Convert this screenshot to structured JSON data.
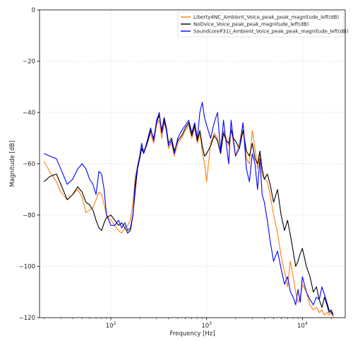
{
  "chart_data": {
    "type": "line",
    "xlabel": "Frequency [Hz]",
    "ylabel": "Magnitude [dB]",
    "x_scale": "log",
    "xlim": [
      18,
      28000
    ],
    "ylim": [
      -120,
      0
    ],
    "x_ticks": [
      {
        "value": 100,
        "base": "10",
        "exp": "2"
      },
      {
        "value": 1000,
        "base": "10",
        "exp": "3"
      },
      {
        "value": 10000,
        "base": "10",
        "exp": "4"
      }
    ],
    "y_ticks": [
      0,
      -20,
      -40,
      -60,
      -80,
      -100,
      -120
    ],
    "y_tick_labels": [
      "0",
      "−20",
      "−40",
      "−60",
      "−80",
      "−100",
      "−120"
    ],
    "grid": true,
    "legend_position": "top-right",
    "series": [
      {
        "name": "Liberty4NC_Ambient_Voice_peak_peak_magnitude_left(dB)",
        "color": "#ff7f0e",
        "x": [
          20,
          23,
          27,
          30,
          35,
          40,
          45,
          50,
          55,
          60,
          65,
          70,
          75,
          80,
          85,
          90,
          100,
          110,
          120,
          130,
          140,
          150,
          160,
          170,
          180,
          190,
          200,
          210,
          220,
          240,
          260,
          280,
          300,
          320,
          340,
          360,
          380,
          400,
          430,
          460,
          500,
          550,
          600,
          650,
          700,
          750,
          800,
          850,
          900,
          950,
          1000,
          1100,
          1200,
          1300,
          1400,
          1500,
          1600,
          1700,
          1800,
          1900,
          2000,
          2200,
          2400,
          2600,
          2800,
          3000,
          3200,
          3400,
          3600,
          3800,
          4000,
          4300,
          4600,
          5000,
          5500,
          6000,
          6500,
          7000,
          7500,
          8000,
          8500,
          9000,
          9500,
          10000,
          11000,
          12000,
          13000,
          14000,
          15000,
          16000,
          17000,
          18000,
          19000,
          20000,
          21000
        ],
        "y": [
          -59,
          -63,
          -67,
          -71,
          -74,
          -72,
          -70,
          -73,
          -79,
          -78,
          -77,
          -74,
          -71,
          -72,
          -76,
          -80,
          -82,
          -84,
          -86,
          -87,
          -85,
          -84,
          -82,
          -75,
          -65,
          -61,
          -58,
          -53,
          -55,
          -52,
          -48,
          -52,
          -45,
          -43,
          -50,
          -44,
          -47,
          -54,
          -52,
          -57,
          -52,
          -50,
          -47,
          -45,
          -50,
          -46,
          -52,
          -48,
          -55,
          -60,
          -67,
          -52,
          -48,
          -50,
          -56,
          -47,
          -50,
          -53,
          -46,
          -52,
          -57,
          -52,
          -44,
          -58,
          -60,
          -47,
          -54,
          -62,
          -56,
          -64,
          -66,
          -67,
          -72,
          -80,
          -87,
          -96,
          -102,
          -108,
          -98,
          -104,
          -110,
          -114,
          -112,
          -107,
          -110,
          -115,
          -117,
          -116,
          -118,
          -117,
          -119,
          -118,
          -119,
          -118,
          -120
        ]
      },
      {
        "name": "NoDvice_Voice_peak_peak_magnitude_left(dB)",
        "color": "#000000",
        "x": [
          20,
          23,
          27,
          30,
          35,
          40,
          45,
          50,
          55,
          60,
          65,
          70,
          75,
          80,
          85,
          90,
          100,
          110,
          120,
          130,
          140,
          150,
          160,
          170,
          180,
          190,
          200,
          210,
          220,
          240,
          260,
          280,
          300,
          320,
          340,
          360,
          380,
          400,
          430,
          460,
          500,
          550,
          600,
          650,
          700,
          750,
          800,
          850,
          900,
          950,
          1000,
          1100,
          1200,
          1300,
          1400,
          1500,
          1600,
          1700,
          1800,
          1900,
          2000,
          2200,
          2400,
          2600,
          2800,
          3000,
          3200,
          3400,
          3600,
          3800,
          4000,
          4300,
          4600,
          5000,
          5500,
          6000,
          6500,
          7000,
          7500,
          8000,
          8500,
          9000,
          9500,
          10000,
          11000,
          12000,
          13000,
          14000,
          15000,
          16000,
          17000,
          18000,
          19000,
          20000,
          21000
        ],
        "y": [
          -67,
          -65,
          -64,
          -68,
          -74,
          -72,
          -69,
          -71,
          -75,
          -76,
          -78,
          -82,
          -85,
          -86,
          -83,
          -81,
          -80,
          -82,
          -84,
          -83,
          -85,
          -87,
          -86,
          -80,
          -70,
          -62,
          -58,
          -54,
          -56,
          -52,
          -47,
          -50,
          -44,
          -41,
          -47,
          -42,
          -46,
          -52,
          -50,
          -55,
          -51,
          -49,
          -46,
          -44,
          -49,
          -45,
          -51,
          -47,
          -53,
          -57,
          -56,
          -53,
          -49,
          -51,
          -56,
          -48,
          -51,
          -52,
          -47,
          -50,
          -51,
          -54,
          -47,
          -55,
          -57,
          -52,
          -58,
          -60,
          -55,
          -62,
          -66,
          -64,
          -68,
          -75,
          -70,
          -80,
          -86,
          -82,
          -88,
          -94,
          -100,
          -98,
          -95,
          -93,
          -100,
          -104,
          -110,
          -108,
          -113,
          -116,
          -112,
          -115,
          -118,
          -117,
          -119
        ]
      },
      {
        "name": "SoundcoreP31i_Ambient_Voice_peak_peak_magnitude_left(dB)",
        "color": "#0000ff",
        "x": [
          20,
          23,
          27,
          30,
          35,
          40,
          45,
          50,
          55,
          60,
          65,
          70,
          75,
          80,
          85,
          90,
          100,
          110,
          120,
          130,
          140,
          150,
          160,
          170,
          180,
          190,
          200,
          210,
          220,
          240,
          260,
          280,
          300,
          320,
          340,
          360,
          380,
          400,
          430,
          460,
          500,
          550,
          600,
          650,
          700,
          750,
          800,
          850,
          900,
          950,
          1000,
          1100,
          1200,
          1300,
          1400,
          1500,
          1600,
          1700,
          1800,
          1900,
          2000,
          2200,
          2400,
          2600,
          2800,
          3000,
          3200,
          3400,
          3600,
          3800,
          4000,
          4300,
          4600,
          5000,
          5500,
          6000,
          6500,
          7000,
          7500,
          8000,
          8500,
          9000,
          9500,
          10000,
          11000,
          12000,
          13000,
          14000,
          15000,
          16000,
          17000,
          18000,
          19000,
          20000,
          21000
        ],
        "y": [
          -56,
          -57,
          -58,
          -62,
          -68,
          -66,
          -62,
          -60,
          -62,
          -66,
          -68,
          -72,
          -63,
          -64,
          -70,
          -80,
          -84,
          -84,
          -82,
          -85,
          -83,
          -86,
          -85,
          -80,
          -67,
          -61,
          -57,
          -52,
          -56,
          -51,
          -46,
          -51,
          -43,
          -40,
          -48,
          -43,
          -47,
          -53,
          -51,
          -56,
          -50,
          -47,
          -45,
          -43,
          -48,
          -44,
          -50,
          -40,
          -36,
          -42,
          -45,
          -50,
          -44,
          -40,
          -55,
          -43,
          -52,
          -60,
          -43,
          -50,
          -57,
          -54,
          -44,
          -62,
          -67,
          -56,
          -60,
          -70,
          -58,
          -72,
          -75,
          -82,
          -90,
          -98,
          -94,
          -101,
          -107,
          -104,
          -110,
          -112,
          -115,
          -109,
          -114,
          -104,
          -110,
          -113,
          -115,
          -112,
          -113,
          -108,
          -111,
          -114,
          -117,
          -118,
          -119
        ]
      }
    ]
  }
}
